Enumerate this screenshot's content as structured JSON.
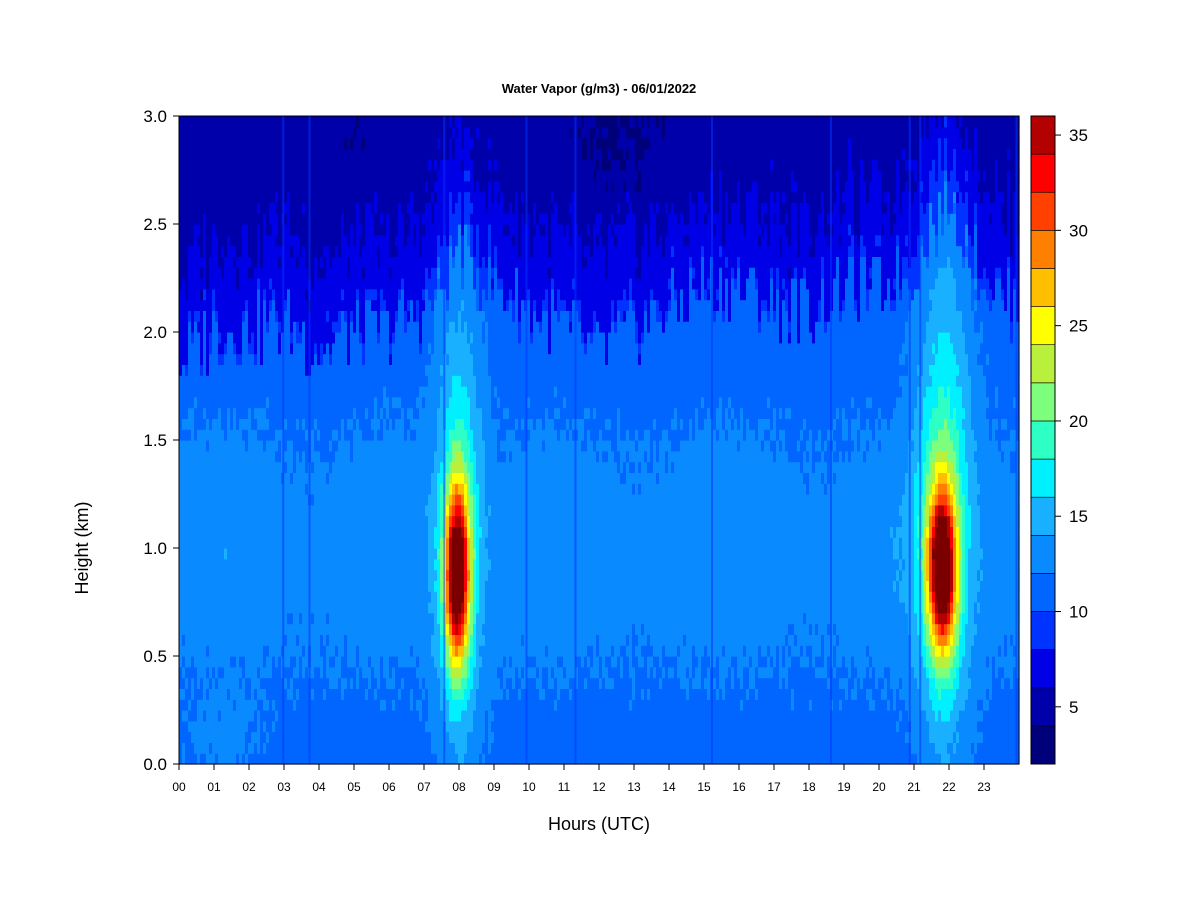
{
  "chart_data": {
    "type": "heatmap",
    "title": "Water Vapor (g/m3) - 06/01/2022",
    "xlabel": "Hours (UTC)",
    "ylabel": "Height (km)",
    "xlim": [
      0,
      24
    ],
    "ylim": [
      0,
      3.0
    ],
    "x_ticks": [
      "00",
      "01",
      "02",
      "03",
      "04",
      "05",
      "06",
      "07",
      "08",
      "09",
      "10",
      "11",
      "12",
      "13",
      "14",
      "15",
      "16",
      "17",
      "18",
      "19",
      "20",
      "21",
      "22",
      "23"
    ],
    "y_ticks": [
      "0.0",
      "0.5",
      "1.0",
      "1.5",
      "2.0",
      "2.5",
      "3.0"
    ],
    "grid": false,
    "colorbar": {
      "range": [
        2,
        36
      ],
      "levels": [
        2,
        4,
        6,
        8,
        10,
        12,
        14,
        16,
        18,
        20,
        22,
        24,
        26,
        28,
        30,
        32,
        34,
        36
      ],
      "colors": [
        "#00007a",
        "#0000aa",
        "#0000e6",
        "#0033ff",
        "#0066ff",
        "#0a8aff",
        "#18b0ff",
        "#00f0ff",
        "#2effc4",
        "#7dff7d",
        "#b9f03c",
        "#ffff00",
        "#ffbf00",
        "#ff8000",
        "#ff4000",
        "#ff0000",
        "#b30000",
        "#7a0000"
      ],
      "tick_values": [
        5,
        10,
        15,
        20,
        25,
        30,
        35
      ],
      "tick_labels": [
        "5",
        "10",
        "15",
        "20",
        "25",
        "30",
        "35"
      ],
      "placement": "right"
    },
    "field_description_points": {
      "hours": [
        0,
        1,
        2,
        3,
        4,
        5,
        6,
        7,
        7.5,
        8,
        8.5,
        9,
        10,
        11,
        12,
        13,
        14,
        15,
        16,
        17,
        18,
        19,
        20,
        21,
        21.5,
        22,
        22.5,
        23,
        23.8
      ],
      "top_of_moist_layer_km": [
        1.85,
        2.0,
        2.0,
        2.05,
        1.9,
        2.0,
        2.0,
        2.1,
        2.2,
        2.4,
        2.3,
        2.2,
        2.1,
        2.0,
        1.9,
        2.0,
        2.1,
        2.2,
        2.2,
        2.1,
        2.1,
        2.2,
        2.2,
        2.3,
        2.5,
        2.6,
        2.45,
        2.25,
        2.1
      ]
    }
  }
}
